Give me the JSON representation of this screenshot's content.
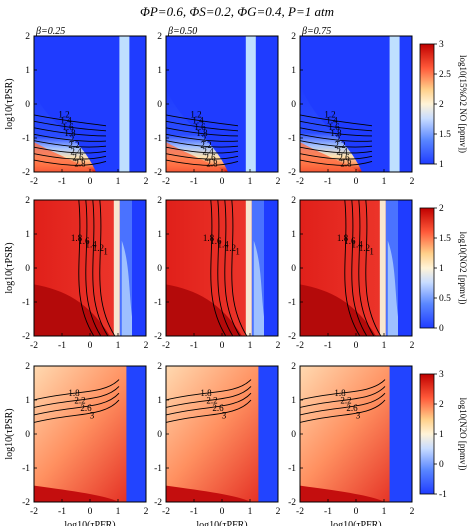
{
  "figure": {
    "title": "ΦP=0.6, ΦS=0.2, ΦG=0.4, P=1 atm",
    "beta_labels": [
      "β=0.25",
      "β=0.50",
      "β=0.75"
    ],
    "ylabel": "log10(τPSR)",
    "xlabel": "log10(τPFR)",
    "x_ticks": [
      "-2",
      "-1",
      "0",
      "1",
      "2"
    ],
    "y_ticks": [
      "2",
      "1",
      "0",
      "-1",
      "-2"
    ]
  },
  "chart_data": [
    {
      "type": "heatmap",
      "row": 1,
      "quantity": "log10(15%O2 NO [ppmv])",
      "colorbar_label": "log10(15%O2 NO [ppmv])",
      "colorbar_range": [
        1,
        3
      ],
      "colorbar_ticks": [
        "3",
        "2.5",
        "2",
        "1.5",
        "1"
      ],
      "xlim": [
        -2,
        2
      ],
      "ylim": [
        -2,
        2
      ],
      "contour_labels": [
        "1.2",
        "1.4",
        "1.6",
        "1.8",
        "2",
        "2.2",
        "2.4",
        "2.6",
        "2.8"
      ],
      "panels": [
        "β=0.25",
        "β=0.50",
        "β=0.75"
      ]
    },
    {
      "type": "heatmap",
      "row": 2,
      "quantity": "log10(NO2 [ppmv])",
      "colorbar_label": "log10(NO2 [ppmv])",
      "colorbar_range": [
        0,
        2
      ],
      "colorbar_ticks": [
        "2",
        "1.5",
        "1",
        "0.5",
        "0"
      ],
      "xlim": [
        -2,
        2
      ],
      "ylim": [
        -2,
        2
      ],
      "contour_labels": [
        "1.8",
        "1.6",
        "1.4",
        "1.2",
        "1",
        "2"
      ],
      "panels": [
        "β=0.25",
        "β=0.50",
        "β=0.75"
      ]
    },
    {
      "type": "heatmap",
      "row": 3,
      "quantity": "log10(N2O [ppmv])",
      "colorbar_label": "log10(N2O [ppmv])",
      "colorbar_range": [
        -1,
        3
      ],
      "colorbar_ticks": [
        "3",
        "2",
        "1",
        "0",
        "-1"
      ],
      "xlim": [
        -2,
        2
      ],
      "ylim": [
        -2,
        2
      ],
      "contour_labels": [
        "1.8",
        "2.2",
        "2.6",
        "3"
      ],
      "panels": [
        "β=0.25",
        "β=0.50",
        "β=0.75"
      ]
    }
  ]
}
